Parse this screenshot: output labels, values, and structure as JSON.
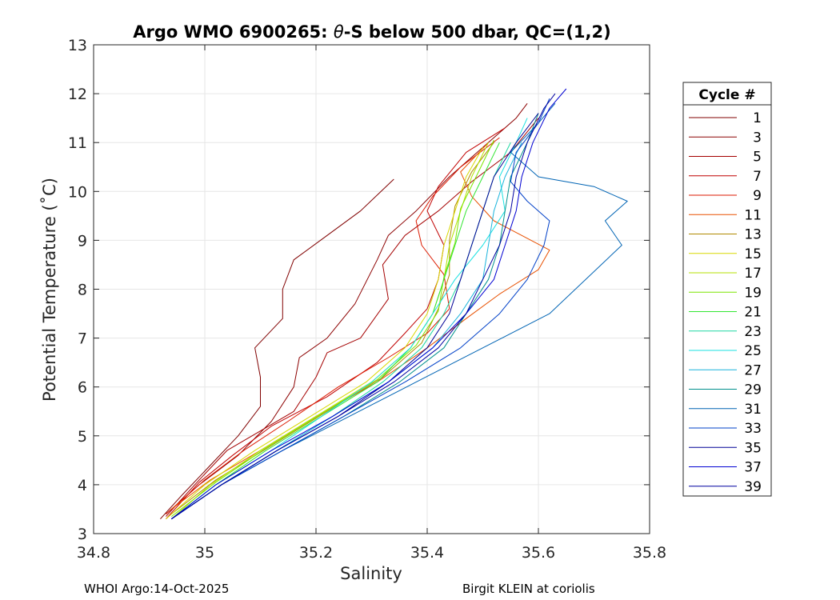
{
  "chart_data": {
    "type": "line",
    "title_prefix": "Argo WMO 6900265: ",
    "title_theta": "θ",
    "title_suffix": "-S below 500 dbar,  QC=(1,2)",
    "xlabel": "Salinity",
    "ylabel": "Potential Temperature (˚C)",
    "xlim": [
      34.8,
      35.8
    ],
    "ylim": [
      3,
      13
    ],
    "xticks": [
      "34.8",
      "35",
      "35.2",
      "35.4",
      "35.6",
      "35.8"
    ],
    "yticks": [
      "3",
      "4",
      "5",
      "6",
      "7",
      "8",
      "9",
      "10",
      "11",
      "12",
      "13"
    ],
    "grid": true,
    "legend_title": "Cycle #",
    "legend_position": "outside-right",
    "series": [
      {
        "name": "1",
        "color": "#800000",
        "points": [
          [
            34.92,
            3.3
          ],
          [
            34.96,
            3.8
          ],
          [
            35.01,
            4.4
          ],
          [
            35.06,
            5.0
          ],
          [
            35.1,
            5.6
          ],
          [
            35.1,
            6.2
          ],
          [
            35.09,
            6.8
          ],
          [
            35.14,
            7.4
          ],
          [
            35.14,
            8.0
          ],
          [
            35.16,
            8.6
          ],
          [
            35.22,
            9.1
          ],
          [
            35.28,
            9.6
          ],
          [
            35.34,
            10.25
          ]
        ]
      },
      {
        "name": "3",
        "color": "#8c0000",
        "points": [
          [
            34.93,
            3.4
          ],
          [
            34.99,
            4.0
          ],
          [
            35.06,
            4.6
          ],
          [
            35.12,
            5.3
          ],
          [
            35.16,
            6.0
          ],
          [
            35.17,
            6.6
          ],
          [
            35.22,
            7.0
          ],
          [
            35.27,
            7.7
          ],
          [
            35.31,
            8.6
          ],
          [
            35.33,
            9.1
          ],
          [
            35.38,
            9.6
          ],
          [
            35.44,
            10.3
          ],
          [
            35.5,
            10.9
          ],
          [
            35.56,
            11.5
          ],
          [
            35.58,
            11.8
          ]
        ]
      },
      {
        "name": "5",
        "color": "#a40000",
        "points": [
          [
            34.93,
            3.35
          ],
          [
            34.99,
            4.1
          ],
          [
            35.04,
            4.7
          ],
          [
            35.1,
            5.1
          ],
          [
            35.16,
            5.5
          ],
          [
            35.2,
            6.2
          ],
          [
            35.22,
            6.7
          ],
          [
            35.28,
            7.0
          ],
          [
            35.33,
            7.8
          ],
          [
            35.32,
            8.5
          ],
          [
            35.36,
            9.1
          ],
          [
            35.42,
            9.6
          ],
          [
            35.48,
            10.2
          ],
          [
            35.55,
            10.8
          ],
          [
            35.6,
            11.5
          ]
        ]
      },
      {
        "name": "7",
        "color": "#c00000",
        "points": [
          [
            34.93,
            3.3
          ],
          [
            34.99,
            4.05
          ],
          [
            35.05,
            4.6
          ],
          [
            35.12,
            5.2
          ],
          [
            35.22,
            5.8
          ],
          [
            35.31,
            6.5
          ],
          [
            35.36,
            7.1
          ],
          [
            35.4,
            7.6
          ],
          [
            35.42,
            8.2
          ],
          [
            35.43,
            8.9
          ],
          [
            35.4,
            9.6
          ],
          [
            35.42,
            10.1
          ],
          [
            35.47,
            10.8
          ],
          [
            35.54,
            11.3
          ]
        ]
      },
      {
        "name": "9",
        "color": "#dc1a00",
        "points": [
          [
            34.93,
            3.4
          ],
          [
            35.0,
            4.1
          ],
          [
            35.07,
            4.7
          ],
          [
            35.15,
            5.3
          ],
          [
            35.24,
            6.0
          ],
          [
            35.33,
            6.6
          ],
          [
            35.4,
            7.1
          ],
          [
            35.44,
            7.6
          ],
          [
            35.43,
            8.3
          ],
          [
            35.39,
            8.9
          ],
          [
            35.38,
            9.4
          ],
          [
            35.41,
            9.9
          ],
          [
            35.46,
            10.5
          ],
          [
            35.53,
            11.1
          ]
        ]
      },
      {
        "name": "11",
        "color": "#e85000",
        "points": [
          [
            34.94,
            3.5
          ],
          [
            35.01,
            4.1
          ],
          [
            35.1,
            4.7
          ],
          [
            35.2,
            5.4
          ],
          [
            35.31,
            6.1
          ],
          [
            35.4,
            6.8
          ],
          [
            35.47,
            7.4
          ],
          [
            35.53,
            7.9
          ],
          [
            35.6,
            8.4
          ],
          [
            35.62,
            8.8
          ],
          [
            35.57,
            9.1
          ],
          [
            35.52,
            9.4
          ],
          [
            35.48,
            9.9
          ],
          [
            35.46,
            10.4
          ],
          [
            35.51,
            11.0
          ]
        ]
      },
      {
        "name": "13",
        "color": "#b08a00",
        "points": [
          [
            34.94,
            3.4
          ],
          [
            35.02,
            4.1
          ],
          [
            35.12,
            4.8
          ],
          [
            35.22,
            5.5
          ],
          [
            35.32,
            6.2
          ],
          [
            35.39,
            6.9
          ],
          [
            35.42,
            7.6
          ],
          [
            35.44,
            8.3
          ],
          [
            35.44,
            9.0
          ],
          [
            35.45,
            9.7
          ],
          [
            35.48,
            10.4
          ],
          [
            35.52,
            11.0
          ]
        ]
      },
      {
        "name": "15",
        "color": "#d8d800",
        "points": [
          [
            34.93,
            3.3
          ],
          [
            35.0,
            4.0
          ],
          [
            35.09,
            4.7
          ],
          [
            35.19,
            5.4
          ],
          [
            35.29,
            6.1
          ],
          [
            35.36,
            6.8
          ],
          [
            35.4,
            7.5
          ],
          [
            35.42,
            8.2
          ],
          [
            35.43,
            8.9
          ],
          [
            35.45,
            9.6
          ],
          [
            35.47,
            10.3
          ],
          [
            35.5,
            10.9
          ]
        ]
      },
      {
        "name": "17",
        "color": "#b4e100",
        "points": [
          [
            34.94,
            3.3
          ],
          [
            35.01,
            4.0
          ],
          [
            35.1,
            4.7
          ],
          [
            35.2,
            5.4
          ],
          [
            35.3,
            6.1
          ],
          [
            35.37,
            6.8
          ],
          [
            35.41,
            7.5
          ],
          [
            35.43,
            8.2
          ],
          [
            35.44,
            8.9
          ],
          [
            35.46,
            9.6
          ],
          [
            35.48,
            10.3
          ],
          [
            35.51,
            11.0
          ]
        ]
      },
      {
        "name": "19",
        "color": "#7ce500",
        "points": [
          [
            34.94,
            3.35
          ],
          [
            35.02,
            4.05
          ],
          [
            35.11,
            4.75
          ],
          [
            35.21,
            5.45
          ],
          [
            35.31,
            6.15
          ],
          [
            35.38,
            6.85
          ],
          [
            35.42,
            7.55
          ],
          [
            35.43,
            8.25
          ],
          [
            35.45,
            8.95
          ],
          [
            35.46,
            9.65
          ],
          [
            35.49,
            10.35
          ],
          [
            35.52,
            11.05
          ]
        ]
      },
      {
        "name": "21",
        "color": "#33e633",
        "points": [
          [
            34.94,
            3.3
          ],
          [
            35.02,
            4.0
          ],
          [
            35.11,
            4.7
          ],
          [
            35.21,
            5.4
          ],
          [
            35.31,
            6.1
          ],
          [
            35.37,
            6.8
          ],
          [
            35.41,
            7.5
          ],
          [
            35.43,
            8.2
          ],
          [
            35.45,
            8.9
          ],
          [
            35.47,
            9.6
          ],
          [
            35.5,
            10.3
          ],
          [
            35.53,
            11.0
          ]
        ]
      },
      {
        "name": "23",
        "color": "#1ad7a0",
        "points": [
          [
            34.94,
            3.3
          ],
          [
            35.03,
            4.0
          ],
          [
            35.13,
            4.7
          ],
          [
            35.23,
            5.4
          ],
          [
            35.32,
            6.1
          ],
          [
            35.39,
            6.8
          ],
          [
            35.43,
            7.5
          ],
          [
            35.46,
            8.2
          ],
          [
            35.48,
            8.9
          ],
          [
            35.5,
            9.6
          ],
          [
            35.52,
            10.3
          ],
          [
            35.55,
            11.0
          ]
        ]
      },
      {
        "name": "25",
        "color": "#1ae1e1",
        "points": [
          [
            34.94,
            3.3
          ],
          [
            35.02,
            4.0
          ],
          [
            35.12,
            4.7
          ],
          [
            35.21,
            5.4
          ],
          [
            35.3,
            6.1
          ],
          [
            35.37,
            6.8
          ],
          [
            35.41,
            7.5
          ],
          [
            35.45,
            8.2
          ],
          [
            35.5,
            8.9
          ],
          [
            35.54,
            9.6
          ],
          [
            35.53,
            10.3
          ],
          [
            35.56,
            11.0
          ],
          [
            35.58,
            11.5
          ]
        ]
      },
      {
        "name": "27",
        "color": "#1ab4dc",
        "points": [
          [
            34.94,
            3.3
          ],
          [
            35.03,
            4.0
          ],
          [
            35.13,
            4.7
          ],
          [
            35.23,
            5.4
          ],
          [
            35.33,
            6.1
          ],
          [
            35.41,
            6.8
          ],
          [
            35.46,
            7.5
          ],
          [
            35.5,
            8.2
          ],
          [
            35.51,
            8.9
          ],
          [
            35.52,
            9.6
          ],
          [
            35.54,
            10.3
          ],
          [
            35.57,
            11.0
          ]
        ]
      },
      {
        "name": "29",
        "color": "#00908c",
        "points": [
          [
            34.94,
            3.3
          ],
          [
            35.03,
            4.0
          ],
          [
            35.14,
            4.7
          ],
          [
            35.25,
            5.4
          ],
          [
            35.35,
            6.1
          ],
          [
            35.43,
            6.8
          ],
          [
            35.47,
            7.5
          ],
          [
            35.51,
            8.2
          ],
          [
            35.53,
            8.9
          ],
          [
            35.54,
            9.6
          ],
          [
            35.55,
            10.3
          ],
          [
            35.58,
            11.0
          ],
          [
            35.6,
            11.6
          ]
        ]
      },
      {
        "name": "31",
        "color": "#0064b4",
        "points": [
          [
            34.94,
            3.3
          ],
          [
            35.03,
            4.0
          ],
          [
            35.14,
            4.7
          ],
          [
            35.26,
            5.4
          ],
          [
            35.38,
            6.1
          ],
          [
            35.5,
            6.8
          ],
          [
            35.62,
            7.5
          ],
          [
            35.75,
            8.9
          ],
          [
            35.72,
            9.4
          ],
          [
            35.76,
            9.8
          ],
          [
            35.7,
            10.1
          ],
          [
            35.6,
            10.3
          ],
          [
            35.55,
            10.8
          ],
          [
            35.6,
            11.4
          ],
          [
            35.63,
            11.8
          ]
        ]
      },
      {
        "name": "33",
        "color": "#0040c8",
        "points": [
          [
            34.94,
            3.3
          ],
          [
            35.03,
            4.0
          ],
          [
            35.14,
            4.7
          ],
          [
            35.25,
            5.4
          ],
          [
            35.36,
            6.1
          ],
          [
            35.46,
            6.8
          ],
          [
            35.53,
            7.5
          ],
          [
            35.58,
            8.2
          ],
          [
            35.61,
            8.9
          ],
          [
            35.62,
            9.4
          ],
          [
            35.58,
            9.8
          ],
          [
            35.55,
            10.2
          ],
          [
            35.56,
            10.8
          ],
          [
            35.6,
            11.4
          ],
          [
            35.62,
            11.9
          ]
        ]
      },
      {
        "name": "35",
        "color": "#000096",
        "points": [
          [
            34.94,
            3.3
          ],
          [
            35.03,
            4.0
          ],
          [
            35.13,
            4.7
          ],
          [
            35.24,
            5.4
          ],
          [
            35.33,
            6.1
          ],
          [
            35.4,
            6.8
          ],
          [
            35.44,
            7.5
          ],
          [
            35.46,
            8.2
          ],
          [
            35.48,
            8.9
          ],
          [
            35.5,
            9.6
          ],
          [
            35.52,
            10.3
          ],
          [
            35.56,
            11.0
          ],
          [
            35.6,
            11.6
          ]
        ]
      },
      {
        "name": "37",
        "color": "#0000d2",
        "points": [
          [
            34.94,
            3.3
          ],
          [
            35.02,
            4.0
          ],
          [
            35.12,
            4.7
          ],
          [
            35.23,
            5.4
          ],
          [
            35.33,
            6.1
          ],
          [
            35.41,
            6.8
          ],
          [
            35.47,
            7.5
          ],
          [
            35.52,
            8.2
          ],
          [
            35.54,
            8.9
          ],
          [
            35.56,
            9.6
          ],
          [
            35.57,
            10.3
          ],
          [
            35.59,
            11.0
          ],
          [
            35.62,
            11.7
          ],
          [
            35.65,
            12.1
          ]
        ]
      },
      {
        "name": "39",
        "color": "#0000a0",
        "points": [
          [
            34.94,
            3.3
          ],
          [
            35.03,
            4.0
          ],
          [
            35.13,
            4.7
          ],
          [
            35.24,
            5.4
          ],
          [
            35.34,
            6.1
          ],
          [
            35.42,
            6.8
          ],
          [
            35.47,
            7.5
          ],
          [
            35.5,
            8.2
          ],
          [
            35.53,
            8.9
          ],
          [
            35.55,
            9.6
          ],
          [
            35.56,
            10.3
          ],
          [
            35.58,
            11.0
          ],
          [
            35.61,
            11.7
          ],
          [
            35.63,
            12.0
          ]
        ]
      }
    ]
  },
  "footer": {
    "left": "WHOI Argo:14-Oct-2025",
    "right": "Birgit KLEIN at coriolis"
  }
}
